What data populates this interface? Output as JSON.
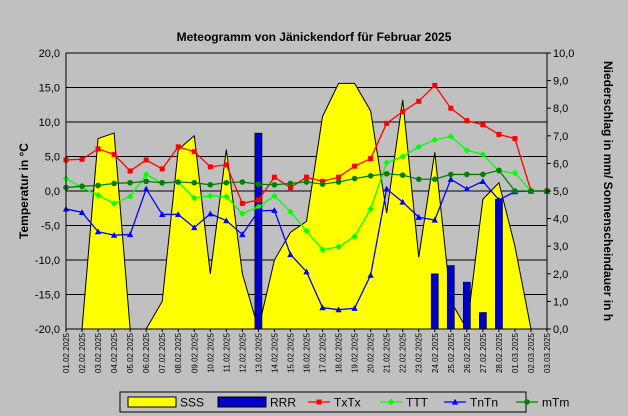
{
  "chart_data": {
    "type": "line",
    "title": "Meteogramm von Jänickendorf für Februar 2025",
    "ylabel_left": "Temperatur in °C",
    "ylabel_right": "Niederschlag in mm/ Sonnenscheindauer in h",
    "ylim_left": [
      -20,
      20
    ],
    "ylim_right": [
      0,
      10
    ],
    "yticks_left": [
      "20,0",
      "15,0",
      "10,0",
      "5,0",
      "0,0",
      "-5,0",
      "-10,0",
      "-15,0",
      "-20,0"
    ],
    "yticks_right": [
      "10,0",
      "9,0",
      "8,0",
      "7,0",
      "6,0",
      "5,0",
      "4,0",
      "3,0",
      "2,0",
      "1,0",
      "0,0"
    ],
    "grid": true,
    "legend_position": "bottom",
    "colors": {
      "plot_bg": "#c0c0c0",
      "SSS": "#ffff00",
      "RRR": "#0000cc",
      "TxTx": "#ff0000",
      "TTT": "#00ff00",
      "TnTn": "#0000ff",
      "mTm": "#008000"
    },
    "x": [
      "01.02.2025",
      "02.02.2025",
      "03.02.2025",
      "04.02.2025",
      "05.02.2025",
      "06.02.2025",
      "07.02.2025",
      "08.02.2025",
      "09.02.2025",
      "10.02.2025",
      "11.02.2025",
      "12.02.2025",
      "13.02.2025",
      "14.02.2025",
      "15.02.2025",
      "16.02.2025",
      "17.02.2025",
      "18.02.2025",
      "19.02.2025",
      "20.02.2025",
      "21.02.2025",
      "22.02.2025",
      "23.02.2025",
      "24.02.2025",
      "25.02.2025",
      "26.02.2025",
      "27.02.2025",
      "28.02.2025",
      "01.03.2025",
      "02.03.2025",
      "03.03.2025"
    ],
    "series": [
      {
        "name": "SSS",
        "axis": "right",
        "kind": "area",
        "values": [
          0.0,
          0.0,
          6.9,
          7.1,
          0.0,
          0.0,
          1.0,
          6.5,
          7.0,
          2.0,
          6.5,
          2.0,
          0.0,
          2.5,
          3.5,
          3.9,
          7.7,
          8.9,
          8.9,
          7.9,
          4.2,
          8.3,
          2.6,
          6.4,
          1.0,
          0.0,
          4.7,
          5.3,
          3.0,
          0.0,
          0.0
        ]
      },
      {
        "name": "RRR",
        "axis": "right",
        "kind": "bar",
        "values": [
          0,
          0,
          0,
          0,
          0,
          0,
          0,
          0,
          0,
          0,
          0,
          0,
          7.1,
          0,
          0,
          0,
          0,
          0,
          0,
          0,
          0,
          0,
          0,
          2.0,
          2.3,
          1.7,
          0.6,
          4.7,
          0,
          0,
          0
        ]
      },
      {
        "name": "TxTx",
        "axis": "left",
        "kind": "line",
        "values": [
          4.5,
          4.6,
          6.1,
          5.3,
          2.9,
          4.5,
          3.2,
          6.4,
          5.7,
          3.5,
          3.8,
          -1.8,
          -1.3,
          2.0,
          0.5,
          2.0,
          1.4,
          2.0,
          3.6,
          4.7,
          9.8,
          11.5,
          13.0,
          15.3,
          12.0,
          10.2,
          9.6,
          8.2,
          7.6,
          0.0,
          0.0
        ]
      },
      {
        "name": "TTT",
        "axis": "left",
        "kind": "line",
        "values": [
          1.8,
          0.5,
          -0.6,
          -1.8,
          -0.8,
          2.4,
          1.1,
          1.3,
          -1.0,
          -0.7,
          -0.8,
          -3.3,
          -2.3,
          -0.7,
          -3.0,
          -5.8,
          -8.5,
          -8.1,
          -6.6,
          -2.6,
          4.1,
          5.0,
          6.4,
          7.4,
          7.9,
          5.9,
          5.3,
          2.9,
          2.6,
          0.0,
          0.0
        ]
      },
      {
        "name": "TnTn",
        "axis": "left",
        "kind": "line",
        "values": [
          -2.6,
          -3.1,
          -5.9,
          -6.4,
          -6.3,
          0.3,
          -3.4,
          -3.4,
          -5.3,
          -3.3,
          -4.3,
          -6.3,
          -2.9,
          -2.8,
          -9.2,
          -11.7,
          -16.9,
          -17.2,
          -17.0,
          -12.2,
          0.3,
          -1.6,
          -3.8,
          -4.2,
          1.7,
          0.3,
          1.4,
          -1.3,
          -0.1,
          0.0,
          0.0
        ]
      },
      {
        "name": "mTm",
        "axis": "left",
        "kind": "line",
        "values": [
          0.5,
          0.7,
          0.8,
          1.1,
          1.2,
          1.4,
          1.2,
          1.3,
          1.2,
          0.9,
          1.2,
          1.3,
          1.0,
          0.9,
          1.1,
          1.3,
          1.0,
          1.3,
          1.8,
          2.2,
          2.5,
          2.3,
          1.7,
          1.7,
          2.4,
          2.4,
          2.4,
          3.0,
          0.0,
          0.0,
          0.0
        ]
      }
    ]
  }
}
